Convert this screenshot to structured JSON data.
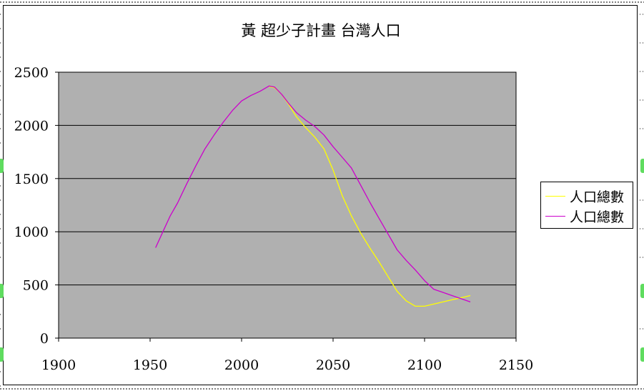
{
  "chart_data": {
    "type": "line",
    "title": "黃 超少子計畫 台灣人口",
    "xlabel": "",
    "ylabel": "",
    "xlim": [
      1900,
      2150
    ],
    "ylim": [
      0,
      2500
    ],
    "xticks": [
      1900,
      1950,
      2000,
      2050,
      2100,
      2150
    ],
    "yticks": [
      0,
      500,
      1000,
      1500,
      2000,
      2500
    ],
    "grid": "horizontal",
    "legend": "right",
    "plot_bg": "#b0b0b0",
    "series": [
      {
        "name": "人口總數",
        "color": "#ffff00",
        "points": [
          [
            2015,
            2365
          ],
          [
            2018,
            2355
          ],
          [
            2022,
            2290
          ],
          [
            2026,
            2190
          ],
          [
            2030,
            2080
          ],
          [
            2035,
            1980
          ],
          [
            2040,
            1890
          ],
          [
            2045,
            1780
          ],
          [
            2050,
            1580
          ],
          [
            2055,
            1340
          ],
          [
            2060,
            1150
          ],
          [
            2065,
            990
          ],
          [
            2070,
            850
          ],
          [
            2075,
            720
          ],
          [
            2080,
            580
          ],
          [
            2085,
            440
          ],
          [
            2090,
            350
          ],
          [
            2095,
            300
          ],
          [
            2100,
            300
          ],
          [
            2105,
            320
          ],
          [
            2110,
            340
          ],
          [
            2115,
            360
          ],
          [
            2120,
            380
          ],
          [
            2125,
            400
          ]
        ]
      },
      {
        "name": "人口總數",
        "color": "#cc00cc",
        "points": [
          [
            1953,
            850
          ],
          [
            1957,
            1000
          ],
          [
            1961,
            1150
          ],
          [
            1965,
            1270
          ],
          [
            1970,
            1450
          ],
          [
            1975,
            1620
          ],
          [
            1980,
            1780
          ],
          [
            1985,
            1910
          ],
          [
            1990,
            2030
          ],
          [
            1995,
            2140
          ],
          [
            2000,
            2230
          ],
          [
            2005,
            2280
          ],
          [
            2010,
            2320
          ],
          [
            2015,
            2370
          ],
          [
            2018,
            2360
          ],
          [
            2022,
            2290
          ],
          [
            2026,
            2200
          ],
          [
            2030,
            2120
          ],
          [
            2035,
            2050
          ],
          [
            2040,
            1990
          ],
          [
            2045,
            1910
          ],
          [
            2050,
            1800
          ],
          [
            2055,
            1700
          ],
          [
            2060,
            1600
          ],
          [
            2065,
            1440
          ],
          [
            2070,
            1280
          ],
          [
            2075,
            1130
          ],
          [
            2080,
            980
          ],
          [
            2085,
            830
          ],
          [
            2090,
            730
          ],
          [
            2095,
            640
          ],
          [
            2100,
            540
          ],
          [
            2105,
            460
          ],
          [
            2110,
            430
          ],
          [
            2115,
            400
          ],
          [
            2120,
            370
          ],
          [
            2125,
            340
          ]
        ]
      }
    ]
  }
}
